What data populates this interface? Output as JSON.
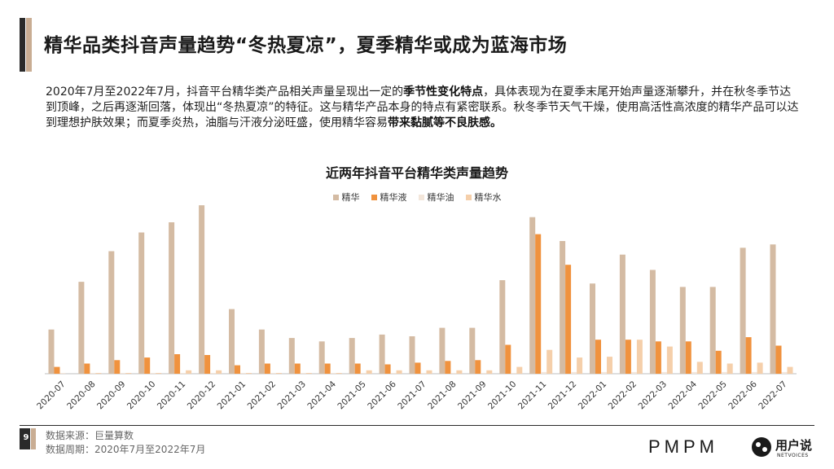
{
  "page": {
    "title": "精华品类抖音声量趋势“冬热夏凉”，夏季精华或成为蓝海市场",
    "body_segments": [
      {
        "text": "2020年7月至2022年7月，抖音平台精华类产品相关声量呈现出一定的",
        "bold": false
      },
      {
        "text": "季节性变化特点",
        "bold": true
      },
      {
        "text": "，具体表现为在夏季末尾开始声量逐渐攀升，并在秋冬季节达到顶峰，之后再逐渐回落，体现出“冬热夏凉”的特征。这与精华产品本身的特点有紧密联系。秋冬季节天气干燥，使用高活性高浓度的精华产品可以达到理想护肤效果；而夏季炎热，油脂与汗液分泌旺盛，使用精华容易",
        "bold": false
      },
      {
        "text": "带来黏腻等不良肤感。",
        "bold": true
      }
    ],
    "footer_source": "数据来源：巨量算数",
    "footer_period": "数据周期：2020年7月至2022年7月",
    "page_number": "9",
    "brand_pmpm": "PMPM",
    "brand_yonghushuo": "用户说",
    "brand_netvoices": "NETVOICES"
  },
  "chart_data": {
    "type": "bar",
    "title": "近两年抖音平台精华类声量趋势",
    "xlabel": "",
    "ylabel": "",
    "grid": false,
    "legend_position": "top",
    "categories": [
      "2020-07",
      "2020-08",
      "2020-09",
      "2020-10",
      "2020-11",
      "2020-12",
      "2021-01",
      "2021-02",
      "2021-03",
      "2021-04",
      "2021-05",
      "2021-06",
      "2021-07",
      "2021-08",
      "2021-09",
      "2021-10",
      "2021-11",
      "2021-12",
      "2022-01",
      "2022-02",
      "2022-03",
      "2022-04",
      "2022-05",
      "2022-06",
      "2022-07"
    ],
    "ylim": [
      0,
      100
    ],
    "series": [
      {
        "name": "精华",
        "color": "#d4bba3",
        "values": [
          26,
          54,
          72,
          83,
          89,
          99,
          38,
          26,
          21,
          19,
          21,
          23,
          22,
          27,
          27,
          55,
          92,
          78,
          53,
          70,
          61,
          51,
          51,
          74,
          76
        ]
      },
      {
        "name": "精华液",
        "color": "#f0923e",
        "values": [
          4,
          6,
          8,
          9.5,
          11.5,
          11,
          5,
          6,
          6,
          6,
          6,
          5.5,
          6.5,
          7.5,
          8,
          17,
          82,
          64,
          20,
          20,
          19,
          19,
          13.5,
          21.5,
          16.5
        ]
      },
      {
        "name": "精华油",
        "color": "#f3e6da",
        "values": [
          0.5,
          0.5,
          0.5,
          0.5,
          0.5,
          0.5,
          0.5,
          0.5,
          0.5,
          0.5,
          0.5,
          0.5,
          0.5,
          0.5,
          0.5,
          0.5,
          1,
          1,
          1,
          1,
          1,
          1,
          1,
          1,
          1
        ]
      },
      {
        "name": "精华水",
        "color": "#f5cfaa",
        "values": [
          0,
          0.5,
          0.5,
          0.5,
          2,
          2,
          0.5,
          0.5,
          0.5,
          0.5,
          2,
          2,
          2,
          2,
          2,
          4,
          14,
          9.5,
          10,
          20,
          16,
          7,
          6,
          6.5,
          4
        ]
      }
    ]
  }
}
